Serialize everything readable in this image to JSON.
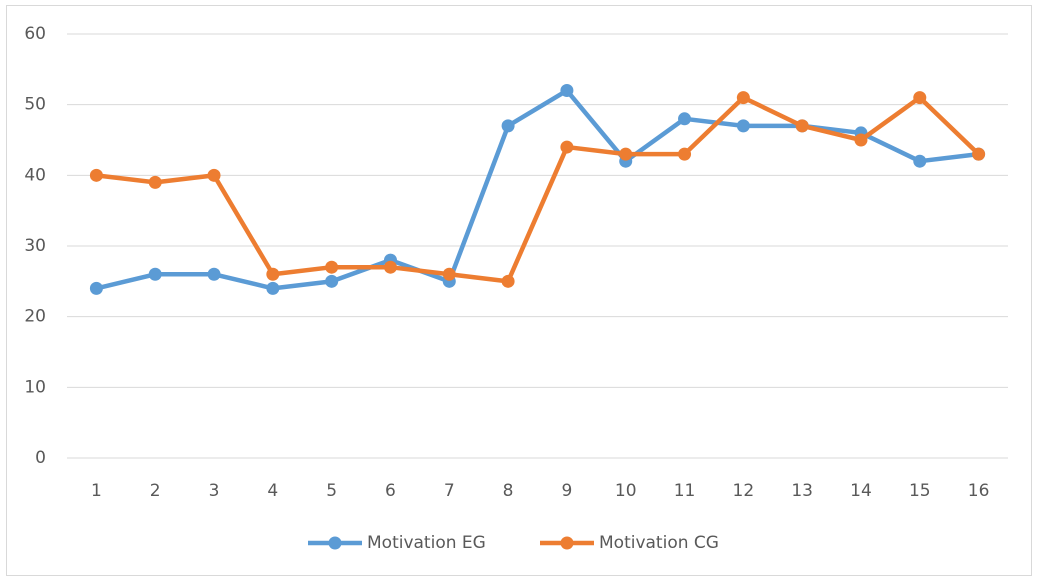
{
  "chart_data": {
    "type": "line",
    "categories": [
      "1",
      "2",
      "3",
      "4",
      "5",
      "6",
      "7",
      "8",
      "9",
      "10",
      "11",
      "12",
      "13",
      "14",
      "15",
      "16"
    ],
    "series": [
      {
        "name": "Motivation EG",
        "color": "#5b9bd5",
        "values": [
          24,
          26,
          26,
          24,
          25,
          28,
          25,
          47,
          52,
          42,
          48,
          47,
          47,
          46,
          42,
          43
        ]
      },
      {
        "name": "Motivation CG",
        "color": "#ed7d31",
        "values": [
          40,
          39,
          40,
          26,
          27,
          27,
          26,
          25,
          44,
          43,
          43,
          51,
          47,
          45,
          51,
          43
        ]
      }
    ],
    "ylim": [
      0,
      60
    ],
    "yticks": [
      0,
      10,
      20,
      30,
      40,
      50,
      60
    ],
    "grid": true,
    "legend": "bottom"
  }
}
